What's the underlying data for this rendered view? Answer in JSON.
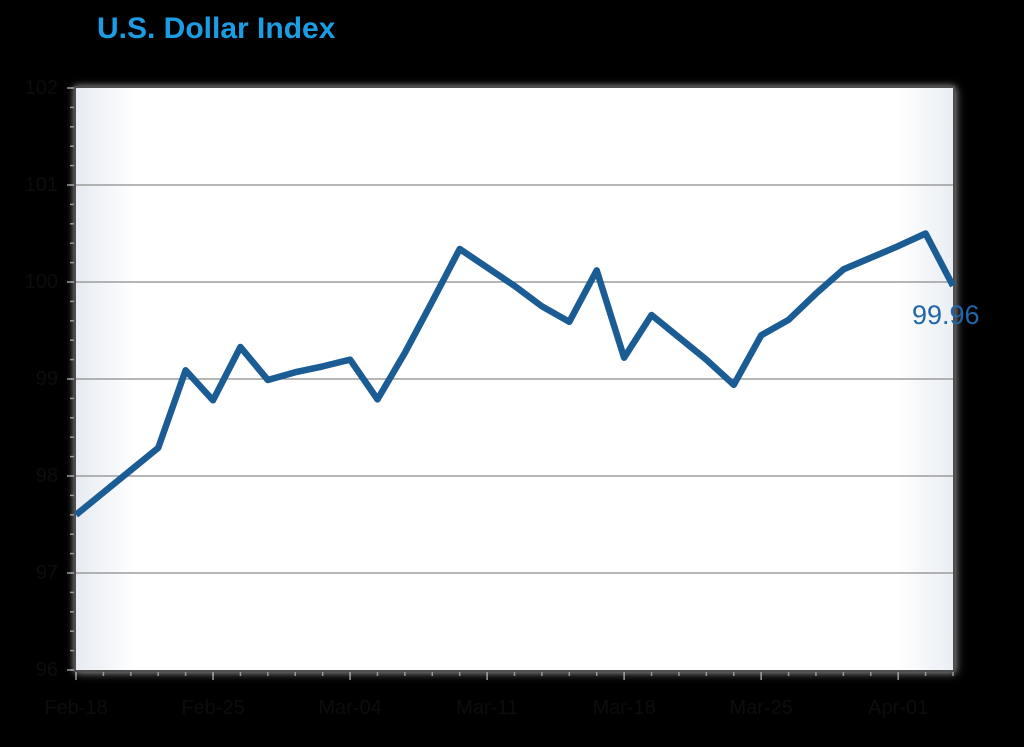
{
  "title": {
    "text": "U.S. Dollar Index",
    "color": "#1b9de4"
  },
  "annotations": {
    "last_value": "99.96"
  },
  "colors": {
    "background": "#000000",
    "line": "#1b5c94",
    "last_value_label": "#2066a8",
    "gridline": "#8a8a8a",
    "tick": "#9a9a9a",
    "axis_label": "#0c0c0c",
    "plot_border": "#4e4e4e"
  },
  "chart_data": {
    "type": "line",
    "title": "U.S. Dollar Index",
    "xlabel": "",
    "ylabel": "",
    "ylim": [
      96,
      102
    ],
    "y_ticks": [
      96,
      97,
      98,
      99,
      100,
      101,
      102
    ],
    "grid": "horizontal",
    "legend": "none",
    "x_tick_labels": [
      "Feb-18",
      "Feb-25",
      "Mar-04",
      "Mar-11",
      "Mar-18",
      "Mar-25",
      "Apr-01"
    ],
    "x_tick_point_indices": [
      0,
      5,
      10,
      15,
      20,
      25,
      30
    ],
    "series": [
      {
        "name": "U.S. Dollar Index",
        "values": [
          97.6,
          97.83,
          98.06,
          98.29,
          99.09,
          98.78,
          99.33,
          98.99,
          99.07,
          99.13,
          99.2,
          98.79,
          99.27,
          99.8,
          100.34,
          100.15,
          99.96,
          99.75,
          99.59,
          100.12,
          99.22,
          99.66,
          99.43,
          99.2,
          98.94,
          99.45,
          99.61,
          99.88,
          100.13,
          100.25,
          100.37,
          100.5,
          99.96
        ]
      }
    ],
    "last_value_label": "99.96"
  }
}
